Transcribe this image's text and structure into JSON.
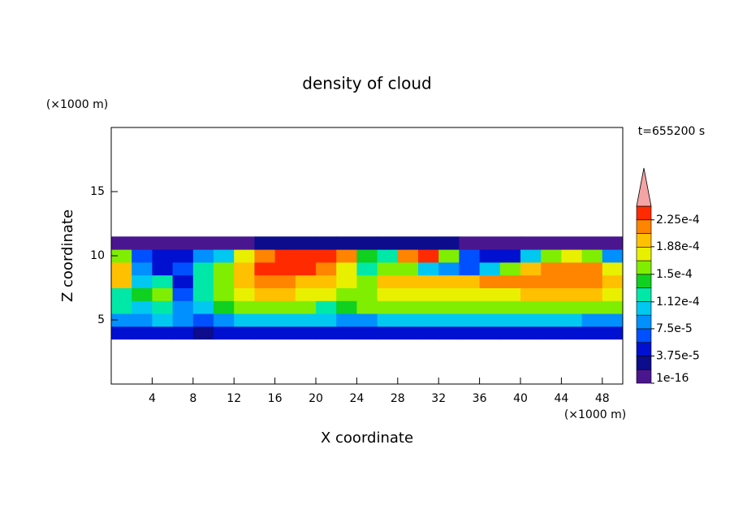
{
  "chart_data": {
    "type": "contour",
    "title": "density of cloud",
    "xlabel": "X coordinate",
    "ylabel": "Z coordinate",
    "x_unit": "(×1000 m)",
    "y_unit": "(×1000 m)",
    "time_label": "t=655200 s",
    "xlim": [
      0,
      50
    ],
    "ylim": [
      0,
      20
    ],
    "xticks": [
      4,
      8,
      12,
      16,
      20,
      24,
      28,
      32,
      36,
      40,
      44,
      48
    ],
    "yticks": [
      5,
      10,
      15
    ],
    "x": [
      1,
      3,
      5,
      7,
      9,
      11,
      13,
      15,
      17,
      19,
      21,
      23,
      25,
      27,
      29,
      31,
      33,
      35,
      37,
      39,
      41,
      43,
      45,
      47,
      49
    ],
    "z": [
      4,
      5,
      6,
      7,
      8,
      9,
      10,
      11
    ],
    "values": [
      [
        4e-05,
        4e-05,
        4e-05,
        4e-05,
        2e-05,
        4e-05,
        4e-05,
        4e-05,
        4e-05,
        4e-05,
        4e-05,
        4e-05,
        4e-05,
        4e-05,
        4e-05,
        4e-05,
        4e-05,
        4e-05,
        4e-05,
        4e-05,
        4e-05,
        4e-05,
        4e-05,
        4e-05,
        4e-05
      ],
      [
        8e-05,
        9e-05,
        0.0001,
        9e-05,
        7e-05,
        9e-05,
        0.0001,
        0.0001,
        0.000105,
        0.000105,
        0.0001,
        9e-05,
        9e-05,
        0.0001,
        0.0001,
        0.0001,
        0.0001,
        0.0001,
        0.0001,
        0.0001,
        0.0001,
        0.0001,
        0.0001,
        9e-05,
        9e-05
      ],
      [
        0.00012,
        0.00011,
        0.00013,
        8e-05,
        0.00011,
        0.00014,
        0.00015,
        0.00015,
        0.00015,
        0.00015,
        0.00013,
        0.00014,
        0.00015,
        0.00015,
        0.00015,
        0.00015,
        0.00015,
        0.00015,
        0.00015,
        0.00015,
        0.00015,
        0.00015,
        0.00015,
        0.00015,
        0.00015
      ],
      [
        0.00013,
        0.00014,
        0.00015,
        7e-05,
        0.00012,
        0.00016,
        0.00018,
        0.00019,
        0.00019,
        0.00018,
        0.00017,
        0.00016,
        0.00015,
        0.00017,
        0.00018,
        0.00018,
        0.00018,
        0.00018,
        0.00018,
        0.00018,
        0.00019,
        0.00019,
        0.00019,
        0.00019,
        0.00018
      ],
      [
        0.00019,
        0.0001,
        0.00012,
        5e-05,
        0.00013,
        0.00016,
        0.00019,
        0.00021,
        0.00021,
        0.0002,
        0.00019,
        0.00017,
        0.00015,
        0.00019,
        0.0002,
        0.0002,
        0.0002,
        0.0002,
        0.00021,
        0.00021,
        0.00022,
        0.00022,
        0.00022,
        0.00022,
        0.0002
      ],
      [
        0.0002,
        9e-05,
        5e-05,
        7e-05,
        0.00012,
        0.00015,
        0.00019,
        0.00023,
        0.00023,
        0.00023,
        0.00022,
        0.00018,
        0.00013,
        0.00016,
        0.00015,
        0.00011,
        8e-05,
        7e-05,
        0.0001,
        0.00015,
        0.0002,
        0.00022,
        0.00022,
        0.00021,
        0.00017
      ],
      [
        0.00016,
        6e-05,
        4e-05,
        5e-05,
        8e-05,
        0.00011,
        0.00017,
        0.00022,
        0.00023,
        0.00023,
        0.00023,
        0.00021,
        0.00014,
        0.00012,
        0.00021,
        0.00023,
        0.00015,
        6e-05,
        4e-05,
        5e-05,
        0.0001,
        0.00016,
        0.00018,
        0.00015,
        8e-05
      ],
      [
        1e-05,
        1e-05,
        1e-05,
        1e-05,
        1e-05,
        1e-05,
        1e-05,
        3e-05,
        3e-05,
        3e-05,
        3e-05,
        3e-05,
        3e-05,
        3e-05,
        3e-05,
        3e-05,
        3e-05,
        1e-05,
        1e-05,
        1e-05,
        1e-05,
        1e-05,
        1e-05,
        1e-05,
        1e-05
      ]
    ],
    "levels": [
      1e-16,
      1.875e-05,
      3.75e-05,
      5.625e-05,
      7.5e-05,
      9.375e-05,
      0.0001125,
      0.00013125,
      0.00015,
      0.00016875,
      0.0001875,
      0.00020625,
      0.000225,
      0.00024375
    ],
    "colors": [
      "#4a1690",
      "#0c0c8c",
      "#0010d0",
      "#0050ff",
      "#0090ff",
      "#00c8f0",
      "#00e8a8",
      "#10d020",
      "#80ee00",
      "#e8f000",
      "#ffc000",
      "#ff8400",
      "#ff2a00"
    ],
    "overflow_color": "#f4a4a4",
    "cbar_ticks": [
      {
        "value": 1e-16,
        "label": "1e-16"
      },
      {
        "value": 3.75e-05,
        "label": "3.75e-5"
      },
      {
        "value": 7.5e-05,
        "label": "7.5e-5"
      },
      {
        "value": 0.000112,
        "label": "1.12e-4"
      },
      {
        "value": 0.00015,
        "label": "1.5e-4"
      },
      {
        "value": 0.000188,
        "label": "1.88e-4"
      },
      {
        "value": 0.000225,
        "label": "2.25e-4"
      }
    ]
  }
}
